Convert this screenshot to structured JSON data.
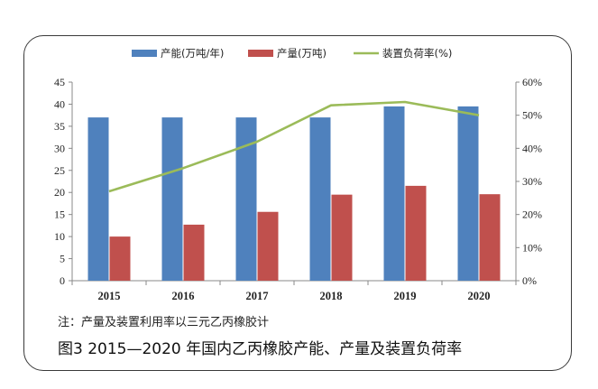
{
  "chart_data": {
    "type": "bar",
    "categories": [
      "2015",
      "2016",
      "2017",
      "2018",
      "2019",
      "2020"
    ],
    "series": [
      {
        "name": "产能(万吨/年)",
        "kind": "bar",
        "axis": "left",
        "color": "#4f81bd",
        "values": [
          37,
          37,
          37,
          37,
          39.5,
          39.5
        ]
      },
      {
        "name": "产量(万吨)",
        "kind": "bar",
        "axis": "left",
        "color": "#c0504d",
        "values": [
          10,
          12.7,
          15.6,
          19.5,
          21.5,
          19.6
        ]
      },
      {
        "name": "装置负荷率(%)",
        "kind": "line",
        "axis": "right",
        "color": "#9bbb59",
        "values": [
          27,
          34,
          42,
          53,
          54,
          50
        ]
      }
    ],
    "ylim_left": [
      0,
      45
    ],
    "yticks_left": [
      "0",
      "5",
      "10",
      "15",
      "20",
      "25",
      "30",
      "35",
      "40",
      "45"
    ],
    "ylim_right": [
      0,
      60
    ],
    "yticks_right": [
      "0%",
      "10%",
      "20%",
      "30%",
      "40%",
      "50%",
      "60%"
    ],
    "grid": false,
    "legend": "top"
  },
  "note": "注：产量及装置利用率以三元乙丙橡胶计",
  "caption": "图3  2015—2020 年国内乙丙橡胶产能、产量及装置负荷率"
}
